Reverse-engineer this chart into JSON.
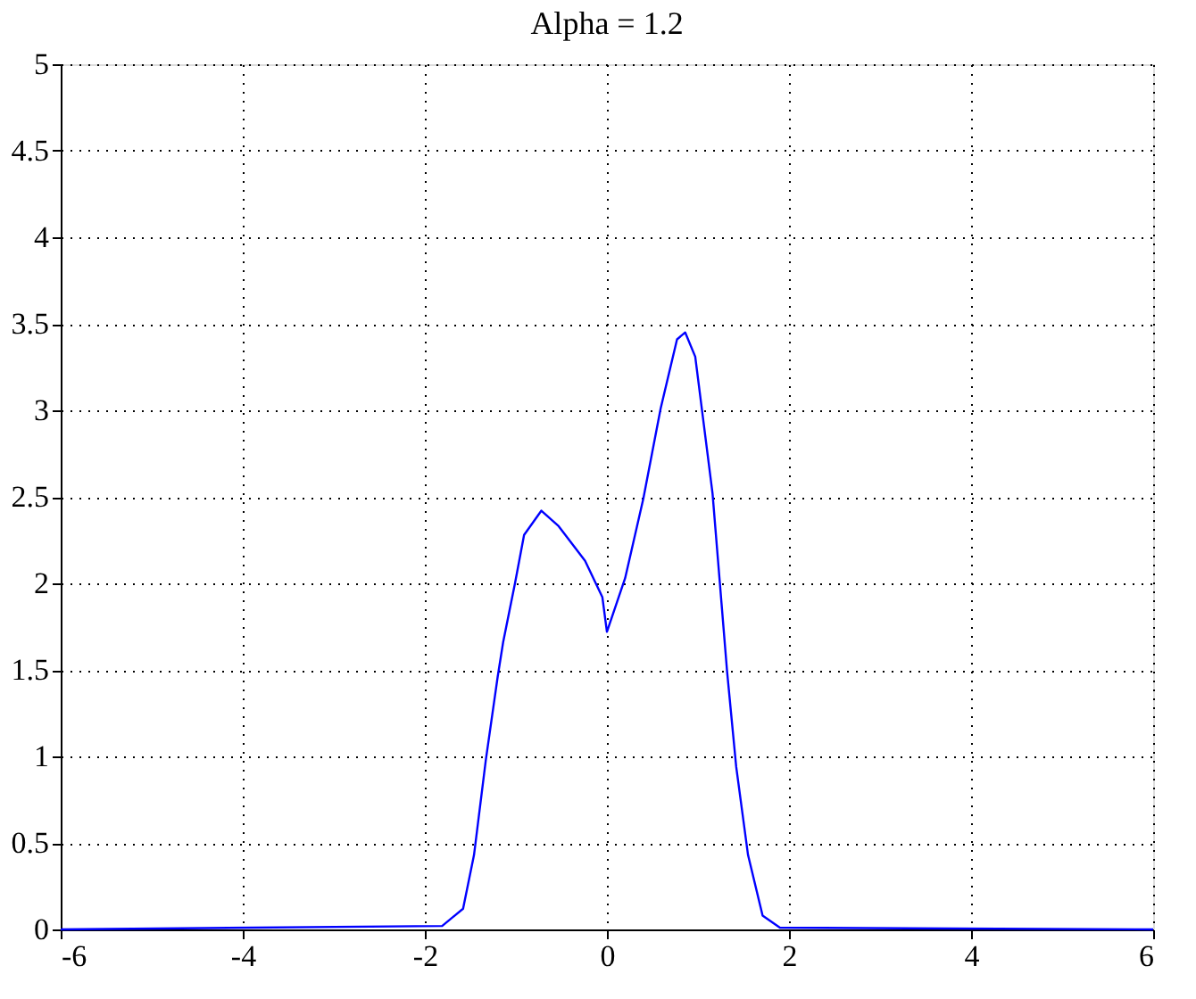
{
  "chart_data": {
    "type": "line",
    "title": "Alpha = 1.2",
    "x": [
      -6,
      -1.81,
      -1.58,
      -1.46,
      -1.33,
      -1.2,
      -1.14,
      -1.01,
      -0.91,
      -0.72,
      -0.53,
      -0.24,
      -0.05,
      0,
      0.2,
      0.4,
      0.59,
      0.77,
      0.86,
      0.97,
      1.16,
      1.32,
      1.42,
      1.55,
      1.71,
      1.9,
      6
    ],
    "series": [
      {
        "color": "#0000ff",
        "values": [
          0,
          0.02,
          0.12,
          0.43,
          0.98,
          1.46,
          1.66,
          2.0,
          2.28,
          2.42,
          2.33,
          2.13,
          1.92,
          1.72,
          2.03,
          2.49,
          3.01,
          3.41,
          3.45,
          3.31,
          2.52,
          1.49,
          0.94,
          0.43,
          0.08,
          0.01,
          0
        ]
      }
    ],
    "xlim": [
      -6,
      6
    ],
    "xticks": [
      -6,
      -4,
      -2,
      0,
      2,
      4,
      6
    ],
    "ylim": [
      0,
      5
    ],
    "yticks": [
      0,
      0.5,
      1,
      1.5,
      2,
      2.5,
      3,
      3.5,
      4,
      4.5,
      5
    ],
    "grid": true,
    "marker": "none",
    "line_style": "solid"
  }
}
